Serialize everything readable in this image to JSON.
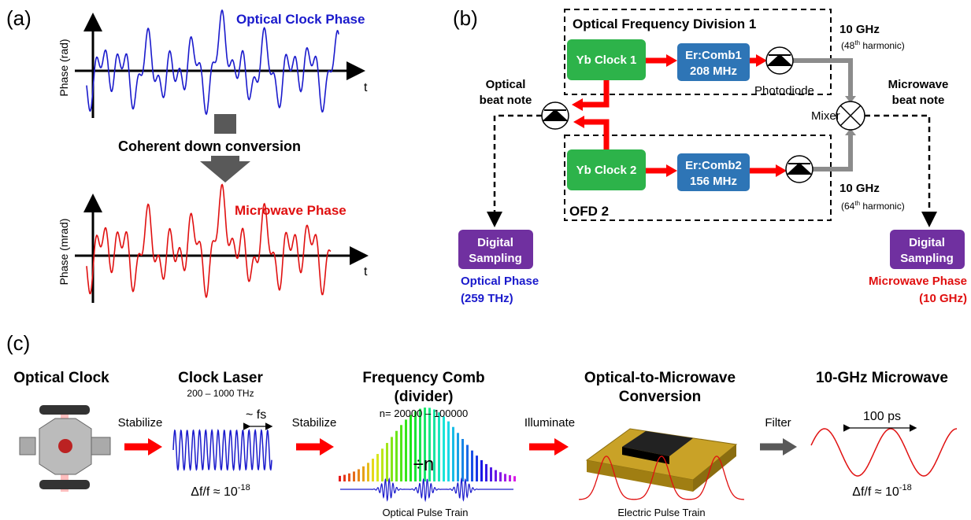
{
  "panel_a": {
    "label": "(a)",
    "top_title": "Optical Clock Phase",
    "top_ylabel": "Phase (rad)",
    "top_xlabel": "t",
    "arrow_label": "Coherent down conversion",
    "bottom_title": "Microwave Phase",
    "bottom_ylabel": "Phase (mrad)",
    "bottom_xlabel": "t"
  },
  "panel_b": {
    "label": "(b)",
    "box1_title": "Optical Frequency Division 1",
    "box2_title": "OFD 2",
    "yb1": "Yb Clock 1",
    "comb1": [
      "Er:Comb1",
      "208 MHz"
    ],
    "yb2": "Yb Clock 2",
    "comb2": [
      "Er:Comb2",
      "156 MHz"
    ],
    "photodiode": "Photodiode",
    "mixer": "Mixer",
    "freq_top": "10 GHz",
    "harm_top": [
      "(48",
      "th",
      " harmonic)"
    ],
    "freq_bottom": "10 GHz",
    "harm_bottom": [
      "(64",
      "th",
      " harmonic)"
    ],
    "optical_beat": [
      "Optical",
      "beat note"
    ],
    "microwave_beat": [
      "Microwave",
      "beat note"
    ],
    "sampling_left": [
      "Digital",
      "Sampling"
    ],
    "sampling_right": [
      "Digital",
      "Sampling"
    ],
    "optical_phase": [
      "Optical Phase",
      "(259 THz)"
    ],
    "microwave_phase": [
      "Microwave Phase",
      "(10 GHz)"
    ]
  },
  "panel_c": {
    "label": "(c)",
    "stage1": "Optical Clock",
    "stage2": "Clock Laser",
    "stage3": [
      "Frequency Comb",
      "(divider)"
    ],
    "stage4": [
      "Optical-to-Microwave",
      "Conversion"
    ],
    "stage5": "10-GHz Microwave",
    "arrow1": "Stabilize",
    "arrow2": "Stabilize",
    "arrow3": "Illuminate",
    "arrow4": "Filter",
    "laser_range": "200 – 1000 THz",
    "laser_period": "~ fs",
    "laser_stability": [
      "Δf/f ≈ 10",
      "-18"
    ],
    "comb_n": "n= 20000 – 100000",
    "divide": "÷n",
    "optical_train": "Optical Pulse Train",
    "electric_train": "Electric Pulse Train",
    "period": "100 ps",
    "mw_stability": [
      "Δf/f ≈ 10",
      "-18"
    ]
  }
}
